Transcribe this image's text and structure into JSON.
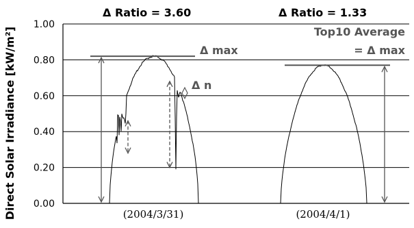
{
  "chart_data": {
    "type": "line",
    "ylabel": "Direct Solar Irradiance [kW/m²]",
    "ylim": [
      0,
      1.0
    ],
    "yticks": [
      "0.00",
      "0.20",
      "0.40",
      "0.60",
      "0.80",
      "1.00"
    ],
    "grid": true,
    "days": [
      {
        "label": "(2004/3/31)",
        "ratio_label": "Δ Ratio = 3.60",
        "peak": 0.82
      },
      {
        "label": "(2004/4/1)",
        "ratio_label": "Δ Ratio = 1.33",
        "peak": 0.77
      }
    ],
    "annotations": {
      "dmax": "Δ max",
      "dn": "Δ n",
      "top10_line1": "Top10 Average",
      "top10_line2": "= Δ max"
    }
  },
  "colors": {
    "grid": "#000000",
    "line": "#000000",
    "arrow": "#555555",
    "annotation": "#555555"
  }
}
